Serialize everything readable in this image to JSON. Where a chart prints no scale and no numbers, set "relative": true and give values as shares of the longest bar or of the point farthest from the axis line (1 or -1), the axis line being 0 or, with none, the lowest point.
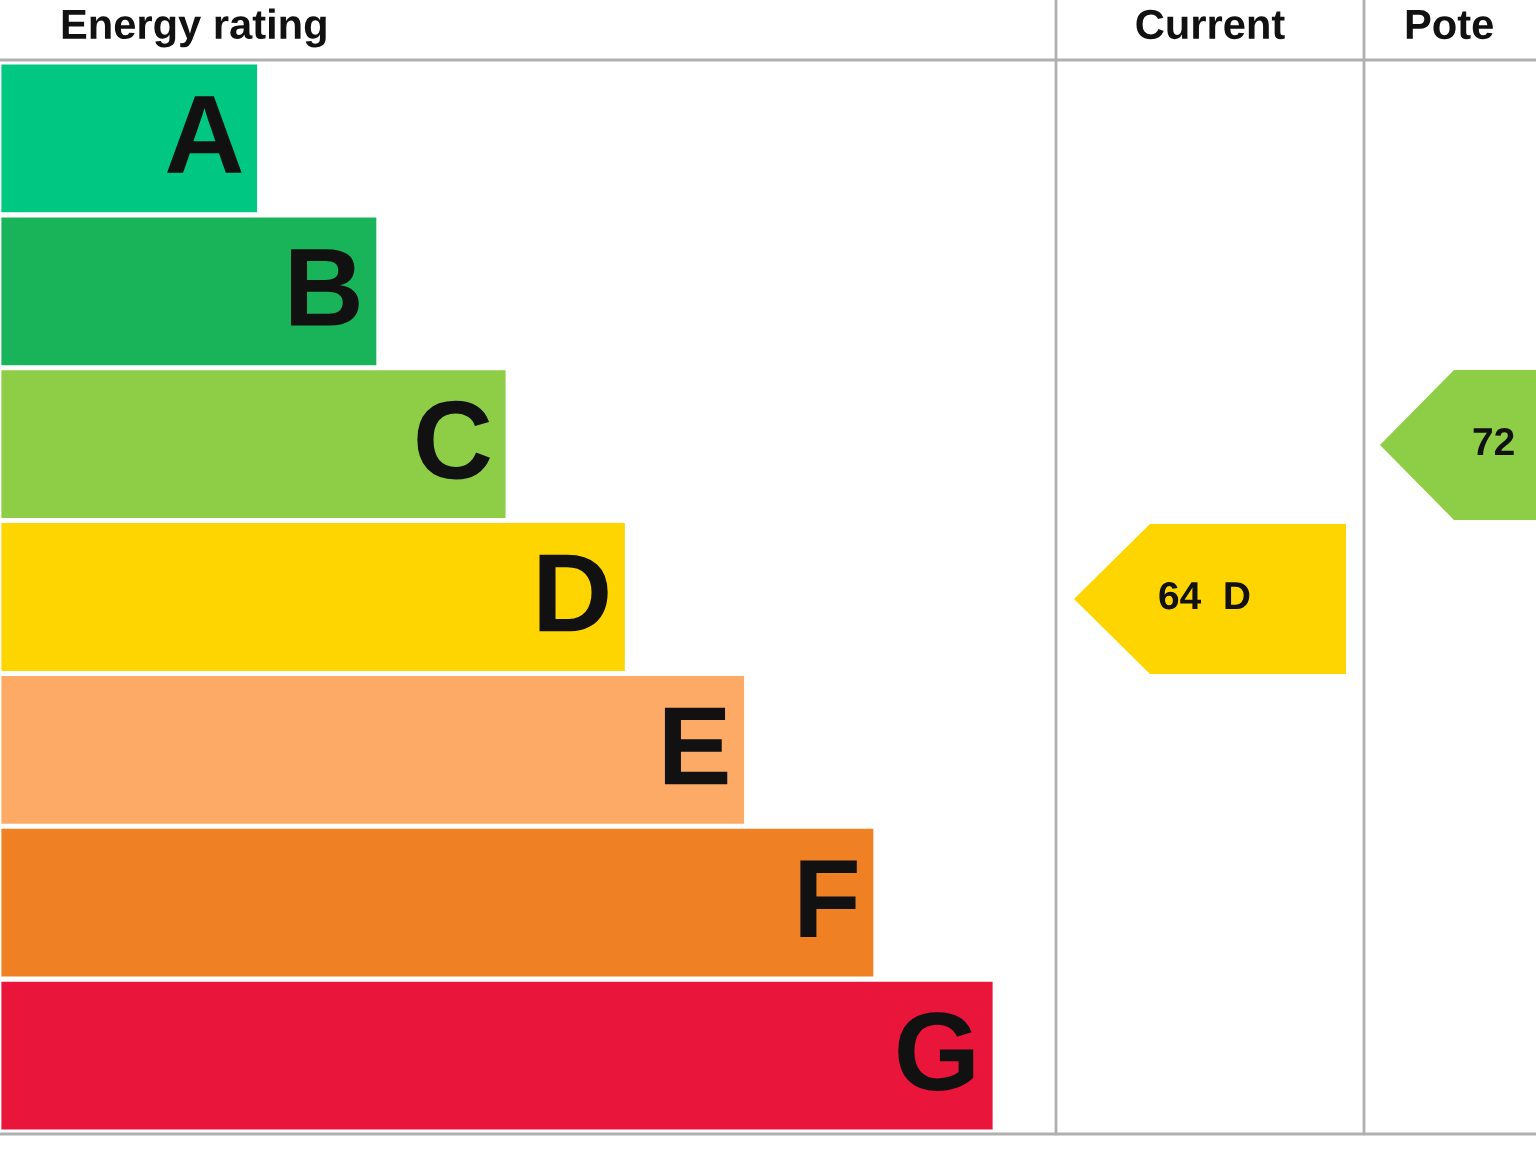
{
  "chart_data": {
    "type": "bar",
    "orientation": "horizontal",
    "relative": true,
    "title": "Energy rating",
    "categories": [
      "A",
      "B",
      "C",
      "D",
      "E",
      "F",
      "G"
    ],
    "values": [
      0.26,
      0.38,
      0.51,
      0.63,
      0.75,
      0.88,
      1
    ],
    "colors": [
      "#00c781",
      "#19b459",
      "#8dce46",
      "#ffd500",
      "#fcaa65",
      "#ef8023",
      "#e9153b"
    ],
    "annotations": [
      "Current",
      "Pote",
      "64  D",
      "72"
    ]
  }
}
